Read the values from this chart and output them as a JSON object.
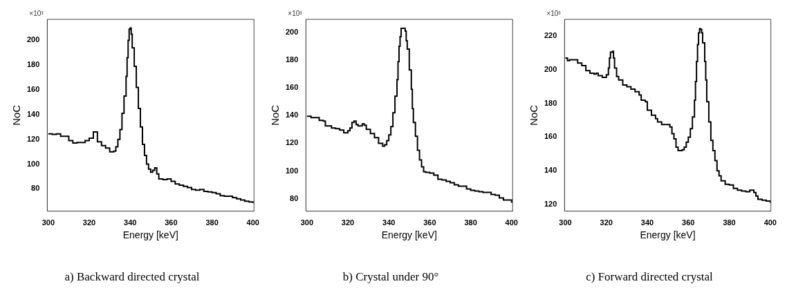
{
  "chart_data": [
    {
      "type": "step",
      "title": "a) Backward directed crystal",
      "xlabel": "Energy [keV]",
      "ylabel": "NoC",
      "annotations": [
        "×10³"
      ],
      "color": "#000000",
      "xlim": [
        299.5,
        400.5
      ],
      "xticks": [
        300,
        320,
        340,
        360,
        380,
        400
      ],
      "ylim": [
        62,
        217
      ],
      "yticks": [
        80,
        100,
        120,
        140,
        160,
        180,
        200
      ],
      "x": [
        300,
        302,
        304,
        306,
        308,
        310,
        312,
        314,
        316,
        318,
        320,
        322,
        323,
        324,
        326,
        328,
        330,
        332,
        333,
        334,
        335,
        336,
        337,
        338,
        338.5,
        339,
        339.5,
        340,
        340.5,
        341,
        342,
        343,
        344,
        345,
        346,
        347,
        348,
        349,
        350,
        351,
        352,
        353,
        354,
        356,
        358,
        360,
        362,
        364,
        366,
        368,
        370,
        372,
        374,
        376,
        378,
        380,
        382,
        384,
        386,
        388,
        390,
        392,
        394,
        396,
        398,
        400
      ],
      "values": [
        124.5,
        124,
        124.5,
        122.5,
        122.5,
        119,
        117,
        117.5,
        117.5,
        119,
        121,
        126,
        126,
        118,
        115,
        113,
        110,
        110.5,
        114,
        120,
        128,
        141,
        155,
        171,
        186,
        200,
        209,
        210,
        205,
        194,
        179,
        162,
        145,
        130,
        116,
        107,
        100,
        96,
        93.5,
        95,
        97,
        92,
        88,
        87.5,
        88,
        86,
        84,
        83,
        82,
        81,
        79.5,
        79,
        79.5,
        78,
        77.5,
        77,
        76,
        74.5,
        74,
        74,
        73,
        72,
        71,
        70,
        69.5,
        68.5
      ]
    },
    {
      "type": "step",
      "title": "b) Crystal under 90°",
      "xlabel": "Energy [keV]",
      "ylabel": "NoC",
      "annotations": [
        "×10³"
      ],
      "color": "#000000",
      "xlim": [
        299.5,
        400.5
      ],
      "xticks": [
        300,
        320,
        340,
        360,
        380,
        400
      ],
      "ylim": [
        71,
        209.5
      ],
      "yticks": [
        80,
        100,
        120,
        140,
        160,
        180,
        200
      ],
      "x": [
        300,
        302,
        304,
        306,
        308,
        309,
        312,
        314,
        316,
        318,
        320,
        321,
        322,
        323,
        324,
        325,
        327,
        328,
        329,
        331,
        333,
        335,
        337,
        338,
        339,
        340,
        341,
        342,
        343,
        344,
        344.5,
        345,
        345.5,
        346,
        347,
        348,
        348.5,
        349,
        350,
        351,
        351.5,
        352,
        353,
        354,
        355,
        356,
        357,
        358,
        360,
        362,
        364,
        366,
        368,
        370,
        372,
        374,
        376,
        378,
        380,
        382,
        384,
        386,
        388,
        390,
        392,
        394,
        396,
        398,
        400
      ],
      "values": [
        139.5,
        138.5,
        138.5,
        136.5,
        136,
        132.5,
        131,
        130.5,
        129.5,
        127.5,
        129,
        131,
        135,
        136,
        133.5,
        132.5,
        134,
        133,
        130,
        127,
        124,
        120,
        118,
        119,
        122,
        126,
        132,
        142,
        154,
        166,
        179,
        190,
        197,
        203,
        203,
        201,
        194,
        188,
        173,
        159,
        145,
        135,
        125,
        115,
        108,
        103,
        99.5,
        99,
        98.5,
        97,
        94,
        93.5,
        92.5,
        91.5,
        90,
        89,
        89,
        87,
        86,
        85.5,
        85,
        84.5,
        84.5,
        83,
        82.5,
        80.5,
        79,
        79,
        77
      ]
    },
    {
      "type": "step",
      "title": "c) Forward directed crystal",
      "xlabel": "Energy [keV]",
      "ylabel": "NoC",
      "annotations": [
        "×10³"
      ],
      "color": "#000000",
      "xlim": [
        299.6,
        400.3
      ],
      "xticks": [
        300,
        320,
        340,
        360,
        380,
        400
      ],
      "ylim": [
        116,
        230
      ],
      "yticks": [
        120,
        140,
        160,
        180,
        200,
        220
      ],
      "x": [
        300,
        301,
        302,
        304,
        306,
        308,
        310,
        312,
        314,
        315,
        316,
        318,
        320,
        321,
        321.5,
        322,
        323,
        323.5,
        324,
        325,
        326,
        328,
        330,
        332,
        334,
        336,
        337,
        339,
        340,
        342,
        344,
        345,
        347,
        349,
        351,
        352,
        353,
        354,
        355,
        357,
        358,
        359,
        360,
        361,
        362,
        363,
        363.5,
        364,
        364.5,
        365,
        365.5,
        366,
        366.5,
        367,
        368,
        368.5,
        369,
        370,
        371,
        372,
        373,
        374,
        375,
        376,
        378,
        380,
        382,
        384,
        386,
        388,
        390,
        392,
        393,
        394,
        396,
        398,
        400
      ],
      "values": [
        207,
        205.5,
        206,
        206,
        204,
        202.5,
        199.5,
        198,
        197.5,
        198,
        196.5,
        195.5,
        197,
        201,
        207,
        210.5,
        211,
        207,
        201,
        196,
        194,
        191,
        190,
        188.5,
        187,
        185,
        182,
        181,
        176,
        173,
        171,
        169,
        167.5,
        167.5,
        166,
        162,
        159,
        154,
        152,
        152.5,
        154,
        157,
        160,
        165,
        172,
        182,
        193,
        205,
        215,
        222,
        224.5,
        224,
        222,
        216,
        205,
        194,
        181,
        169,
        158,
        152,
        146,
        140,
        137,
        134,
        132,
        131.5,
        129.5,
        128.5,
        128,
        127.5,
        128.5,
        127,
        125,
        123,
        122.5,
        122,
        121
      ]
    }
  ]
}
